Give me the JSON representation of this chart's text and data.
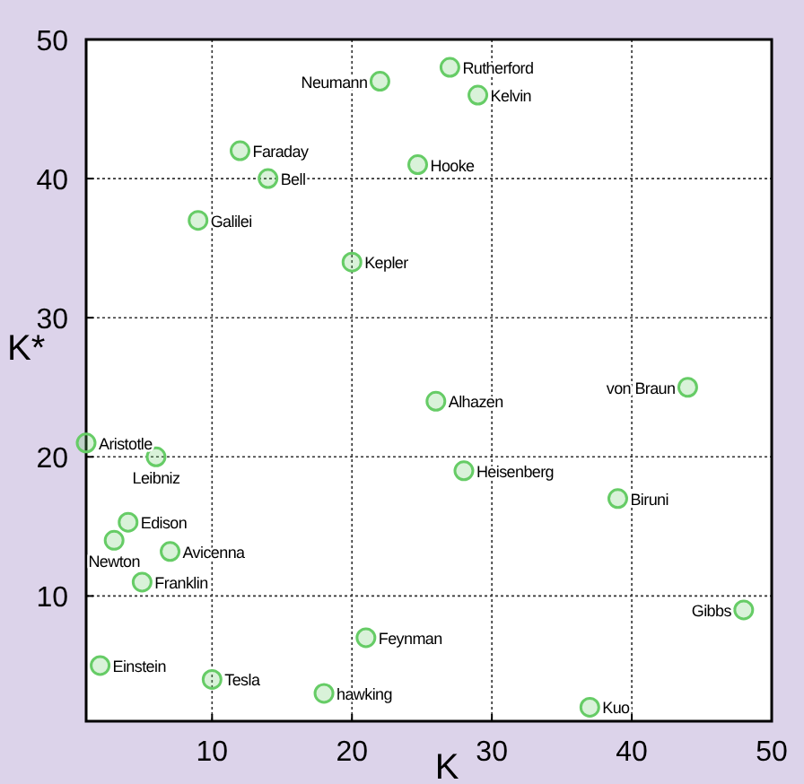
{
  "chart_data": {
    "type": "scatter",
    "xlabel": "K",
    "ylabel": "K*",
    "xlim": [
      1,
      50
    ],
    "ylim": [
      1,
      50
    ],
    "xticks": [
      10,
      20,
      30,
      40,
      50
    ],
    "yticks": [
      10,
      20,
      30,
      40,
      50
    ],
    "grid": true,
    "marker": "circle",
    "series": [
      {
        "color": "#66cc66",
        "x": [
          22,
          27,
          29,
          24.7,
          12,
          14,
          9,
          20,
          26,
          44,
          28,
          39,
          48,
          37,
          1,
          6,
          4,
          3,
          7,
          5,
          2,
          10,
          18,
          21
        ],
        "values": [
          47,
          48,
          46,
          41,
          42,
          40,
          37,
          34,
          24,
          25,
          19,
          17,
          9,
          2,
          21,
          20,
          15.3,
          14,
          13.2,
          11,
          5,
          4,
          3,
          7
        ]
      }
    ],
    "annotations": [
      {
        "text": "Neumann",
        "x": 22,
        "y": 47
      },
      {
        "text": "Rutherford",
        "x": 27,
        "y": 48
      },
      {
        "text": "Kelvin",
        "x": 29,
        "y": 46
      },
      {
        "text": "Hooke",
        "x": 24.7,
        "y": 41
      },
      {
        "text": "Faraday",
        "x": 12,
        "y": 42
      },
      {
        "text": "Bell",
        "x": 14,
        "y": 40
      },
      {
        "text": "Galilei",
        "x": 9,
        "y": 37
      },
      {
        "text": "Kepler",
        "x": 20,
        "y": 34
      },
      {
        "text": "Alhazen",
        "x": 26,
        "y": 24
      },
      {
        "text": "von Braun",
        "x": 44,
        "y": 25
      },
      {
        "text": "Heisenberg",
        "x": 28,
        "y": 19
      },
      {
        "text": "Biruni",
        "x": 39,
        "y": 17
      },
      {
        "text": "Gibbs",
        "x": 48,
        "y": 9
      },
      {
        "text": "Kuo",
        "x": 37,
        "y": 2
      },
      {
        "text": "Aristotle",
        "x": 1,
        "y": 21
      },
      {
        "text": "Leibniz",
        "x": 6,
        "y": 20
      },
      {
        "text": "Edison",
        "x": 4,
        "y": 15.3
      },
      {
        "text": "Newton",
        "x": 3,
        "y": 14
      },
      {
        "text": "Avicenna",
        "x": 7,
        "y": 13.2
      },
      {
        "text": "Franklin",
        "x": 5,
        "y": 11
      },
      {
        "text": "Einstein",
        "x": 2,
        "y": 5
      },
      {
        "text": "Tesla",
        "x": 10,
        "y": 4
      },
      {
        "text": "hawking",
        "x": 18,
        "y": 3
      },
      {
        "text": "Feynman",
        "x": 21,
        "y": 7
      }
    ]
  }
}
